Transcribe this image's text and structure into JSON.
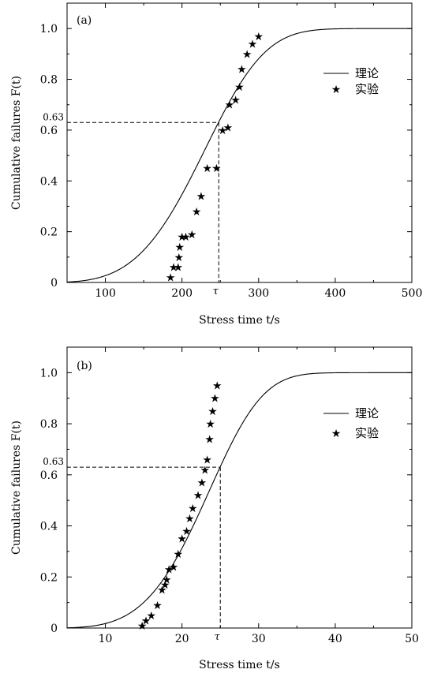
{
  "chart_data": [
    {
      "panel_label": "(a)",
      "type": "line+scatter",
      "xlabel": "Stress time t/s",
      "ylabel": "Cumulative failures F(t)",
      "xlim": [
        50,
        500
      ],
      "ylim": [
        0,
        1.1
      ],
      "x_ticks": [
        100,
        200,
        300,
        400,
        500
      ],
      "y_ticks": [
        0,
        0.2,
        0.4,
        0.6,
        0.8,
        1.0
      ],
      "y_tick_labels": [
        "0",
        "0.2",
        "0.4",
        "0.6",
        "0.8",
        "1.0"
      ],
      "reference": {
        "y": 0.63,
        "y_label": "0.63",
        "tau": 248,
        "tau_label": "τ"
      },
      "legend": {
        "position": "right",
        "line_label": "理论",
        "marker_label": "实验"
      },
      "theory": {
        "name": "理论",
        "model": "weibull",
        "eta": 248,
        "beta": 3.97,
        "x_start": 50,
        "x_end": 500
      },
      "experiment": {
        "name": "实验",
        "x": [
          185,
          189,
          195,
          196,
          197,
          200,
          205,
          213,
          219,
          225,
          233,
          245,
          253,
          260,
          262,
          270,
          275,
          278,
          285,
          292,
          300
        ],
        "y": [
          0.02,
          0.06,
          0.06,
          0.1,
          0.14,
          0.18,
          0.18,
          0.19,
          0.28,
          0.34,
          0.45,
          0.45,
          0.6,
          0.61,
          0.7,
          0.72,
          0.77,
          0.84,
          0.9,
          0.94,
          0.97
        ]
      }
    },
    {
      "panel_label": "(b)",
      "type": "line+scatter",
      "xlabel": "Stress time t/s",
      "ylabel": "Cumulative failures F(t)",
      "xlim": [
        5,
        50
      ],
      "ylim": [
        0,
        1.1
      ],
      "x_ticks": [
        10,
        20,
        30,
        40,
        50
      ],
      "y_ticks": [
        0,
        0.2,
        0.4,
        0.6,
        0.8,
        1.0
      ],
      "y_tick_labels": [
        "0",
        "0.2",
        "0.4",
        "0.6",
        "0.8",
        "1.0"
      ],
      "reference": {
        "y": 0.63,
        "y_label": "0.63",
        "tau": 25,
        "tau_label": "τ"
      },
      "legend": {
        "position": "right",
        "line_label": "理论",
        "marker_label": "实验"
      },
      "theory": {
        "name": "理论",
        "model": "weibull",
        "eta": 25,
        "beta": 4.4,
        "x_start": 5,
        "x_end": 50
      },
      "experiment": {
        "name": "实验",
        "x": [
          14.8,
          15.3,
          16.0,
          16.8,
          17.4,
          17.8,
          18.0,
          18.3,
          18.9,
          19.5,
          20.0,
          20.6,
          21.0,
          21.4,
          22.1,
          22.6,
          23.0,
          23.3,
          23.6,
          23.7,
          24.0,
          24.3,
          24.6
        ],
        "y": [
          0.01,
          0.03,
          0.05,
          0.09,
          0.15,
          0.17,
          0.19,
          0.23,
          0.24,
          0.29,
          0.35,
          0.38,
          0.43,
          0.47,
          0.52,
          0.57,
          0.62,
          0.66,
          0.74,
          0.8,
          0.85,
          0.9,
          0.95
        ]
      }
    }
  ]
}
